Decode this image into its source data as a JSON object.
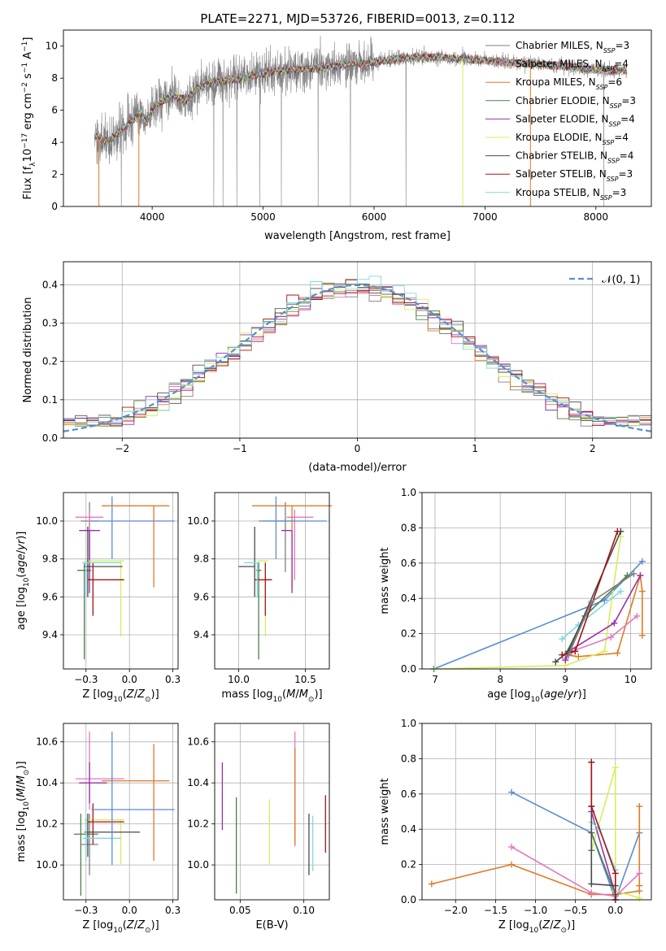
{
  "figure_title": "PLATE=2271, MJD=53726, FIBERID=0013, z=0.112",
  "legend_entries": [
    {
      "model": "Chabrier MILES",
      "nssp": "3",
      "color": "#7f7f7f"
    },
    {
      "model": "Salpeter MILES",
      "nssp": "4",
      "color": "#e377c2"
    },
    {
      "model": "Kroupa MILES",
      "nssp": "6",
      "color": "#e07b27"
    },
    {
      "model": "Chabrier ELODIE",
      "nssp": "3",
      "color": "#4d7f4d"
    },
    {
      "model": "Salpeter ELODIE",
      "nssp": "4",
      "color": "#9a2fa8"
    },
    {
      "model": "Kroupa ELODIE",
      "nssp": "4",
      "color": "#d4ef5c"
    },
    {
      "model": "Chabrier STELIB",
      "nssp": "4",
      "color": "#4a4a4a"
    },
    {
      "model": "Salpeter STELIB",
      "nssp": "3",
      "color": "#a31515"
    },
    {
      "model": "Kroupa STELIB",
      "nssp": "3",
      "color": "#7fd9e0"
    }
  ],
  "chart_data": [
    {
      "id": "spectrum",
      "type": "line",
      "xlabel": "wavelength [Angstrom, rest frame]",
      "ylabel": "Flux [f_λ 10^-17 erg cm^-2 s^-1 A^-1]",
      "xlim": [
        3200,
        8500
      ],
      "ylim": [
        0,
        11
      ],
      "xticks": [
        4000,
        5000,
        6000,
        7000,
        8000
      ],
      "yticks": [
        0,
        2,
        4,
        6,
        8,
        10
      ],
      "grid": false,
      "legend": "upper right",
      "x_range_data": [
        3480,
        8280
      ],
      "continuum": {
        "x": [
          3480,
          3600,
          3700,
          3800,
          3900,
          3950,
          4000,
          4100,
          4200,
          4300,
          4400,
          4500,
          4600,
          4800,
          5000,
          5200,
          5400,
          5600,
          5800,
          6000,
          6200,
          6400,
          6600,
          6800,
          7000,
          7200,
          7400,
          7600,
          7800,
          8000,
          8280
        ],
        "y": [
          4.3,
          4.1,
          4.6,
          5.2,
          5.8,
          5.2,
          6.0,
          6.6,
          6.9,
          6.6,
          7.3,
          7.7,
          7.8,
          8.0,
          8.3,
          8.5,
          8.6,
          8.7,
          8.9,
          9.0,
          9.2,
          9.3,
          9.3,
          9.2,
          9.1,
          9.0,
          8.9,
          8.8,
          8.7,
          8.5,
          8.5
        ]
      }
    },
    {
      "id": "residuals",
      "type": "histogram",
      "xlabel": "(data-model)/error",
      "ylabel": "Normed distribution",
      "xlim": [
        -2.5,
        2.5
      ],
      "ylim": [
        0,
        0.46
      ],
      "xticks": [
        -2,
        -1,
        0,
        1,
        2
      ],
      "yticks": [
        0.0,
        0.1,
        0.2,
        0.3,
        0.4
      ],
      "grid": true,
      "legend": "upper right",
      "reference": {
        "name": "𝒩(0, 1)",
        "color": "#5b8bd8"
      },
      "bin_width": 0.1
    },
    {
      "id": "age_vs_Z",
      "type": "scatter",
      "xlabel": "Z [log10(Z/Z☉)]",
      "ylabel": "age  [log10(age/yr)]",
      "xlim": [
        -0.38,
        0.28
      ],
      "ylim": [
        9.22,
        10.15
      ],
      "xticks": [
        -0.25,
        0.0,
        0.25
      ],
      "yticks": [
        9.4,
        9.6,
        9.8,
        10.0
      ],
      "grid": true,
      "errorbars": [
        {
          "x": -0.23,
          "xerr": [
            0.05,
            0.05
          ],
          "y": 10.0,
          "yerr": [
            0.27,
            0.1
          ],
          "color": "#7f7f7f"
        },
        {
          "x": -0.23,
          "xerr": [
            0.08,
            0.08
          ],
          "y": 10.02,
          "yerr": [
            0.33,
            0.04
          ],
          "color": "#e377c2"
        },
        {
          "x": 0.14,
          "xerr": [
            0.3,
            0.09
          ],
          "y": 10.08,
          "yerr": [
            0.43,
            0.0
          ],
          "color": "#e07b27"
        },
        {
          "x": -0.26,
          "xerr": [
            0.04,
            0.04
          ],
          "y": 9.74,
          "yerr": [
            0.47,
            0.04
          ],
          "color": "#4d7f4d"
        },
        {
          "x": -0.23,
          "xerr": [
            0.06,
            0.06
          ],
          "y": 9.95,
          "yerr": [
            0.33,
            0.0
          ],
          "color": "#9a2fa8"
        },
        {
          "x": -0.05,
          "xerr": [
            0.21,
            0.02
          ],
          "y": 9.79,
          "yerr": [
            0.4,
            0.0
          ],
          "color": "#d4ef5c"
        },
        {
          "x": -0.24,
          "xerr": [
            0.02,
            0.2
          ],
          "y": 9.76,
          "yerr": [
            0.16,
            0.21
          ],
          "color": "#4a4a4a"
        },
        {
          "x": -0.21,
          "xerr": [
            0.03,
            0.18
          ],
          "y": 9.69,
          "yerr": [
            0.19,
            0.09
          ],
          "color": "#a31515"
        },
        {
          "x": -0.25,
          "xerr": [
            0.02,
            0.2
          ],
          "y": 9.78,
          "yerr": [
            0.18,
            0.0
          ],
          "color": "#7fd9e0"
        },
        {
          "x": -0.1,
          "xerr": [
            0.12,
            0.36
          ],
          "y": 10.0,
          "yerr": [
            0.2,
            0.13
          ],
          "color": "#5b8bd8"
        }
      ]
    },
    {
      "id": "age_vs_mass",
      "type": "scatter",
      "xlabel": "mass [log10(M/M☉)]",
      "ylabel": "",
      "xlim": [
        9.82,
        10.68
      ],
      "ylim": [
        9.22,
        10.15
      ],
      "xticks": [
        10.0,
        10.5
      ],
      "yticks": [
        9.4,
        9.6,
        9.8,
        10.0
      ],
      "grid": true,
      "errorbars": [
        {
          "x": 10.35,
          "xerr": [
            0.2,
            0.07
          ],
          "y": 10.0,
          "yerr": [
            0.27,
            0.1
          ],
          "color": "#7f7f7f"
        },
        {
          "x": 10.42,
          "xerr": [
            0.06,
            0.14
          ],
          "y": 10.02,
          "yerr": [
            0.33,
            0.04
          ],
          "color": "#e377c2"
        },
        {
          "x": 10.4,
          "xerr": [
            0.3,
            0.3
          ],
          "y": 10.08,
          "yerr": [
            0.43,
            0.0
          ],
          "color": "#e07b27"
        },
        {
          "x": 10.15,
          "xerr": [
            0.02,
            0.02
          ],
          "y": 9.74,
          "yerr": [
            0.47,
            0.04
          ],
          "color": "#4d7f4d"
        },
        {
          "x": 10.4,
          "xerr": [
            0.08,
            0.0
          ],
          "y": 9.95,
          "yerr": [
            0.33,
            0.0
          ],
          "color": "#9a2fa8"
        },
        {
          "x": 10.2,
          "xerr": [
            0.06,
            0.02
          ],
          "y": 9.79,
          "yerr": [
            0.4,
            0.0
          ],
          "color": "#d4ef5c"
        },
        {
          "x": 10.12,
          "xerr": [
            0.12,
            0.0
          ],
          "y": 9.76,
          "yerr": [
            0.16,
            0.21
          ],
          "color": "#4a4a4a"
        },
        {
          "x": 10.2,
          "xerr": [
            0.08,
            0.05
          ],
          "y": 9.69,
          "yerr": [
            0.19,
            0.09
          ],
          "color": "#a31515"
        },
        {
          "x": 10.14,
          "xerr": [
            0.1,
            0.02
          ],
          "y": 9.78,
          "yerr": [
            0.18,
            0.0
          ],
          "color": "#7fd9e0"
        },
        {
          "x": 10.28,
          "xerr": [
            0.1,
            0.38
          ],
          "y": 10.0,
          "yerr": [
            0.2,
            0.13
          ],
          "color": "#5b8bd8"
        }
      ]
    },
    {
      "id": "weight_vs_age",
      "type": "line",
      "xlabel": "age  [log10(age/yr)]",
      "ylabel": "mass weight",
      "xlim": [
        6.8,
        10.32
      ],
      "ylim": [
        0.0,
        1.0
      ],
      "xticks": [
        7,
        8,
        9,
        10
      ],
      "yticks": [
        0.0,
        0.2,
        0.4,
        0.6,
        0.8,
        1.0
      ],
      "grid": true,
      "series": [
        {
          "color": "#5b8bd8",
          "x": [
            6.98,
            9.6,
            10.18
          ],
          "y": [
            0.0,
            0.39,
            0.61
          ]
        },
        {
          "color": "#e07b27",
          "x": [
            9.0,
            9.2,
            9.8,
            10.15,
            10.18,
            10.18
          ],
          "y": [
            0.08,
            0.07,
            0.09,
            0.53,
            0.44,
            0.19
          ]
        },
        {
          "color": "#d4ef5c",
          "x": [
            7.0,
            9.0,
            9.6,
            9.85
          ],
          "y": [
            0.0,
            0.02,
            0.1,
            0.75
          ]
        },
        {
          "color": "#e377c2",
          "x": [
            9.0,
            9.1,
            9.7,
            10.1
          ],
          "y": [
            0.06,
            0.1,
            0.18,
            0.3
          ]
        },
        {
          "color": "#9a2fa8",
          "x": [
            9.0,
            9.05,
            9.75,
            10.15
          ],
          "y": [
            0.05,
            0.1,
            0.26,
            0.53
          ]
        },
        {
          "color": "#4d7f4d",
          "x": [
            9.0,
            9.3,
            9.95
          ],
          "y": [
            0.08,
            0.3,
            0.53
          ]
        },
        {
          "color": "#7fd9e0",
          "x": [
            8.95,
            9.2,
            9.85
          ],
          "y": [
            0.17,
            0.25,
            0.44
          ]
        },
        {
          "color": "#4a4a4a",
          "x": [
            8.85,
            9.05,
            9.85
          ],
          "y": [
            0.04,
            0.1,
            0.78
          ]
        },
        {
          "color": "#a31515",
          "x": [
            8.95,
            9.15,
            9.8
          ],
          "y": [
            0.08,
            0.1,
            0.78
          ]
        },
        {
          "color": "#7f7f7f",
          "x": [
            9.05,
            9.4,
            10.05
          ],
          "y": [
            0.08,
            0.38,
            0.54
          ]
        }
      ]
    },
    {
      "id": "mass_vs_Z",
      "type": "scatter",
      "xlabel": "Z [log10(Z/Z☉)]",
      "ylabel": "mass [log10(M/M☉)]",
      "xlim": [
        -0.38,
        0.28
      ],
      "ylim": [
        9.83,
        10.69
      ],
      "xticks": [
        -0.25,
        0.0,
        0.25
      ],
      "yticks": [
        10.0,
        10.2,
        10.4,
        10.6
      ],
      "grid": true,
      "errorbars": [
        {
          "x": -0.23,
          "xerr": [
            0.05,
            0.05
          ],
          "y": 10.1,
          "yerr": [
            0.15,
            0.15
          ],
          "color": "#7f7f7f"
        },
        {
          "x": -0.23,
          "xerr": [
            0.08,
            0.2
          ],
          "y": 10.42,
          "yerr": [
            0.15,
            0.23
          ],
          "color": "#e377c2"
        },
        {
          "x": 0.14,
          "xerr": [
            0.3,
            0.09
          ],
          "y": 10.41,
          "yerr": [
            0.39,
            0.18
          ],
          "color": "#e07b27"
        },
        {
          "x": -0.28,
          "xerr": [
            0.04,
            0.1
          ],
          "y": 10.15,
          "yerr": [
            0.3,
            0.1
          ],
          "color": "#4d7f4d"
        },
        {
          "x": -0.23,
          "xerr": [
            0.06,
            0.1
          ],
          "y": 10.4,
          "yerr": [
            0.1,
            0.1
          ],
          "color": "#9a2fa8"
        },
        {
          "x": -0.05,
          "xerr": [
            0.21,
            0.02
          ],
          "y": 10.22,
          "yerr": [
            0.22,
            0.0
          ],
          "color": "#d4ef5c"
        },
        {
          "x": -0.24,
          "xerr": [
            0.02,
            0.3
          ],
          "y": 10.16,
          "yerr": [
            0.12,
            0.09
          ],
          "color": "#4a4a4a"
        },
        {
          "x": -0.21,
          "xerr": [
            0.03,
            0.18
          ],
          "y": 10.21,
          "yerr": [
            0.11,
            0.09
          ],
          "color": "#a31515"
        },
        {
          "x": -0.25,
          "xerr": [
            0.02,
            0.2
          ],
          "y": 10.13,
          "yerr": [
            0.11,
            0.1
          ],
          "color": "#7fd9e0"
        },
        {
          "x": -0.1,
          "xerr": [
            0.12,
            0.36
          ],
          "y": 10.27,
          "yerr": [
            0.27,
            0.38
          ],
          "color": "#5b8bd8"
        }
      ]
    },
    {
      "id": "mass_vs_ebv",
      "type": "scatter",
      "xlabel": "E(B-V)",
      "ylabel": "",
      "xlim": [
        0.03,
        0.12
      ],
      "ylim": [
        9.83,
        10.69
      ],
      "xticks": [
        0.05,
        0.1
      ],
      "yticks": [
        10.0,
        10.2,
        10.4,
        10.6
      ],
      "grid": true,
      "errorbars": [
        {
          "x": 0.036,
          "y": 10.33,
          "yerr": [
            0.16,
            0.17
          ],
          "color": "#9a2fa8"
        },
        {
          "x": 0.047,
          "y": 10.09,
          "yerr": [
            0.23,
            0.24
          ],
          "color": "#4d7f4d"
        },
        {
          "x": 0.073,
          "y": 10.16,
          "yerr": [
            0.16,
            0.16
          ],
          "color": "#d4ef5c"
        },
        {
          "x": 0.093,
          "y": 10.37,
          "yerr": [
            0.28,
            0.28
          ],
          "color": "#e377c2"
        },
        {
          "x": 0.093,
          "y": 10.33,
          "yerr": [
            0.23,
            0.24
          ],
          "color": "#e07b27"
        },
        {
          "x": 0.104,
          "y": 10.1,
          "yerr": [
            0.15,
            0.15
          ],
          "color": "#4a4a4a"
        },
        {
          "x": 0.107,
          "y": 10.1,
          "yerr": [
            0.13,
            0.14
          ],
          "color": "#7fd9e0"
        },
        {
          "x": 0.117,
          "y": 10.2,
          "yerr": [
            0.14,
            0.14
          ],
          "color": "#a31515"
        }
      ]
    },
    {
      "id": "weight_vs_Z",
      "type": "line",
      "xlabel": "Z [log10(Z/Z☉)]",
      "ylabel": "mass weight",
      "xlim": [
        -2.42,
        0.45
      ],
      "ylim": [
        0.0,
        1.0
      ],
      "xticks": [
        -2.0,
        -1.5,
        -1.0,
        -0.5,
        0.0
      ],
      "yticks": [
        0.0,
        0.2,
        0.4,
        0.6,
        0.8,
        1.0
      ],
      "grid": true,
      "series": [
        {
          "color": "#5b8bd8",
          "x": [
            -1.3,
            -0.3,
            0.0,
            0.3
          ],
          "y": [
            0.61,
            0.38,
            0.0,
            0.38
          ]
        },
        {
          "color": "#e07b27",
          "x": [
            -2.3,
            -1.3,
            -0.3,
            0.0,
            0.3,
            0.3,
            0.3
          ],
          "y": [
            0.09,
            0.2,
            0.03,
            0.03,
            0.05,
            0.08,
            0.53
          ]
        },
        {
          "color": "#d4ef5c",
          "x": [
            -0.3,
            0.0,
            0.0,
            0.3
          ],
          "y": [
            0.28,
            0.75,
            0.05,
            0.01
          ]
        },
        {
          "color": "#e377c2",
          "x": [
            -1.3,
            -0.3,
            0.0,
            0.3
          ],
          "y": [
            0.3,
            0.04,
            0.02,
            0.15
          ]
        },
        {
          "color": "#9a2fa8",
          "x": [
            -0.3,
            -0.3,
            0.0
          ],
          "y": [
            0.53,
            0.5,
            0.03
          ]
        },
        {
          "color": "#4d7f4d",
          "x": [
            -0.3,
            -0.3,
            0.0
          ],
          "y": [
            0.28,
            0.38,
            0.03
          ]
        },
        {
          "color": "#7fd9e0",
          "x": [
            -0.3,
            -0.2,
            0.0
          ],
          "y": [
            0.44,
            0.4,
            0.17
          ]
        },
        {
          "color": "#4a4a4a",
          "x": [
            -0.3,
            -0.3,
            0.0
          ],
          "y": [
            0.78,
            0.09,
            0.08
          ]
        },
        {
          "color": "#a31515",
          "x": [
            -0.3,
            -0.3,
            0.0,
            0.0
          ],
          "y": [
            0.78,
            0.53,
            0.15,
            0.0
          ]
        }
      ]
    }
  ]
}
